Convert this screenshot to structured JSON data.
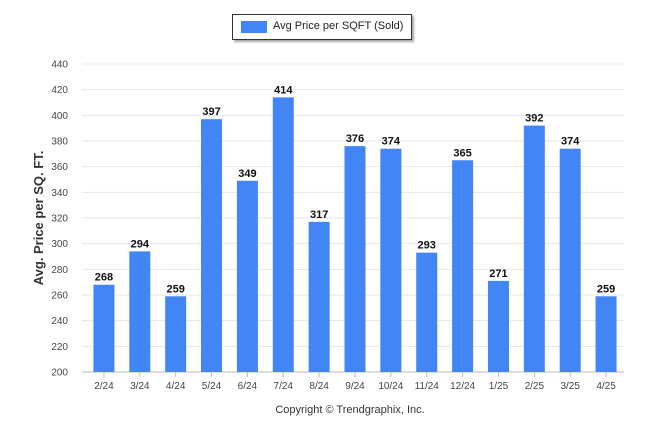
{
  "chart_data": {
    "type": "bar",
    "categories": [
      "2/24",
      "3/24",
      "4/24",
      "5/24",
      "6/24",
      "7/24",
      "8/24",
      "9/24",
      "10/24",
      "11/24",
      "12/24",
      "1/25",
      "2/25",
      "3/25",
      "4/25"
    ],
    "series": [
      {
        "name": "Avg Price per SQFT (Sold)",
        "values": [
          268,
          294,
          259,
          397,
          349,
          414,
          317,
          376,
          374,
          293,
          365,
          271,
          392,
          374,
          259
        ]
      }
    ],
    "xlabel": "",
    "ylabel": "Avg. Price per SQ. FT.",
    "ylim": [
      200,
      440
    ],
    "yticks": [
      200,
      220,
      240,
      260,
      280,
      300,
      320,
      340,
      360,
      380,
      400,
      420,
      440
    ],
    "grid": true,
    "legend_position": "top-center",
    "data_labels": true,
    "bar_color": "#4285f4"
  },
  "footer_text": "Copyright © Trendgraphix, Inc."
}
